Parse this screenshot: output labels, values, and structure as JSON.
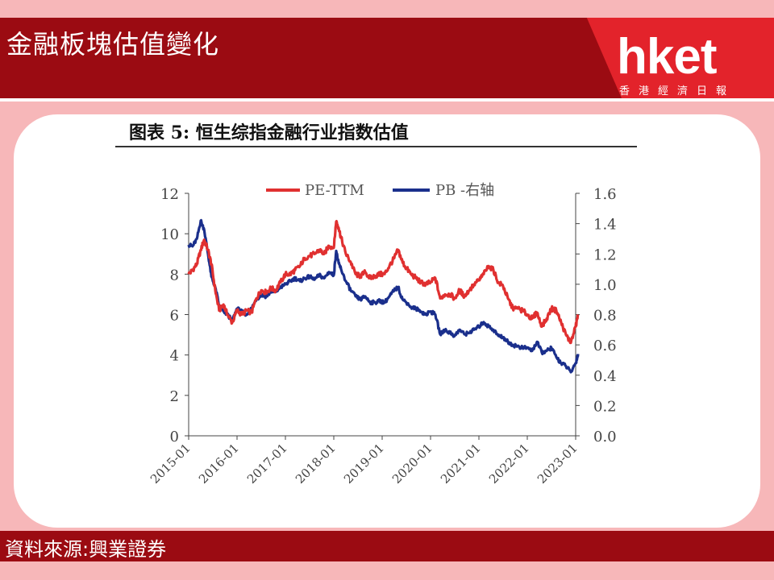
{
  "header": {
    "title": "金融板塊估值變化",
    "logo_text": "hket",
    "logo_sub": "香港經濟日報"
  },
  "footer": {
    "source": "資料來源:興業證券"
  },
  "colors": {
    "header_bg": "#9b0b12",
    "logo_bg": "#e3232b",
    "page_bg": "#f7b7b9",
    "pe_color": "#e03030",
    "pb_color": "#1a2f8c"
  },
  "chart_data": {
    "type": "line",
    "title": "图表 5: 恒生综指金融行业指数估值",
    "x_ticks": [
      "2015-01",
      "2016-01",
      "2017-01",
      "2018-01",
      "2019-01",
      "2020-01",
      "2021-01",
      "2022-01",
      "2023-01"
    ],
    "y_left": {
      "ticks": [
        "0",
        "2",
        "4",
        "6",
        "8",
        "10",
        "12"
      ],
      "lim": [
        0,
        12
      ]
    },
    "y_right": {
      "ticks": [
        "0.0",
        "0.2",
        "0.4",
        "0.6",
        "0.8",
        "1.0",
        "1.2",
        "1.4",
        "1.6"
      ],
      "lim": [
        0,
        1.6
      ]
    },
    "legend_position": "top",
    "series": [
      {
        "name": "PE-TTM",
        "axis": "left",
        "color": "#e03030",
        "x": [
          2015.0,
          2015.08,
          2015.17,
          2015.25,
          2015.32,
          2015.4,
          2015.47,
          2015.55,
          2015.63,
          2015.72,
          2015.8,
          2015.9,
          2016.0,
          2016.1,
          2016.2,
          2016.3,
          2016.4,
          2016.5,
          2016.6,
          2016.7,
          2016.8,
          2016.9,
          2017.0,
          2017.1,
          2017.2,
          2017.3,
          2017.4,
          2017.5,
          2017.6,
          2017.7,
          2017.8,
          2017.9,
          2018.0,
          2018.05,
          2018.1,
          2018.15,
          2018.25,
          2018.35,
          2018.45,
          2018.55,
          2018.65,
          2018.75,
          2018.85,
          2018.95,
          2019.05,
          2019.15,
          2019.25,
          2019.33,
          2019.42,
          2019.5,
          2019.6,
          2019.7,
          2019.8,
          2019.9,
          2020.0,
          2020.1,
          2020.2,
          2020.3,
          2020.4,
          2020.5,
          2020.6,
          2020.7,
          2020.8,
          2020.9,
          2021.0,
          2021.1,
          2021.2,
          2021.3,
          2021.4,
          2021.5,
          2021.6,
          2021.7,
          2021.8,
          2021.9,
          2022.0,
          2022.1,
          2022.2,
          2022.3,
          2022.4,
          2022.5,
          2022.6,
          2022.7,
          2022.8,
          2022.9,
          2023.0,
          2023.05
        ],
        "y": [
          8.0,
          8.2,
          8.5,
          9.2,
          9.7,
          9.2,
          8.5,
          7.2,
          6.2,
          6.5,
          6.0,
          5.6,
          6.2,
          6.0,
          6.2,
          6.1,
          6.8,
          7.2,
          7.1,
          7.3,
          7.2,
          7.6,
          8.0,
          8.0,
          8.2,
          8.4,
          8.8,
          8.9,
          9.0,
          9.2,
          9.0,
          9.4,
          9.3,
          10.6,
          10.3,
          9.8,
          9.0,
          8.6,
          8.0,
          7.9,
          8.1,
          7.8,
          7.9,
          8.0,
          8.0,
          8.4,
          8.8,
          9.2,
          8.6,
          8.3,
          8.0,
          7.8,
          7.6,
          7.5,
          7.6,
          7.8,
          6.8,
          7.0,
          7.0,
          6.8,
          7.2,
          6.9,
          7.2,
          7.5,
          7.7,
          8.0,
          8.4,
          8.2,
          7.6,
          7.4,
          6.8,
          6.3,
          6.3,
          6.2,
          6.0,
          5.8,
          6.1,
          5.4,
          5.8,
          6.3,
          6.2,
          5.6,
          5.0,
          4.6,
          5.4,
          6.0
        ]
      },
      {
        "name": "PB -右轴",
        "axis": "right",
        "color": "#1a2f8c",
        "x": [
          2015.0,
          2015.08,
          2015.17,
          2015.25,
          2015.32,
          2015.4,
          2015.47,
          2015.55,
          2015.63,
          2015.72,
          2015.8,
          2015.9,
          2016.0,
          2016.1,
          2016.2,
          2016.3,
          2016.4,
          2016.5,
          2016.6,
          2016.7,
          2016.8,
          2016.9,
          2017.0,
          2017.1,
          2017.2,
          2017.3,
          2017.4,
          2017.5,
          2017.6,
          2017.7,
          2017.8,
          2017.9,
          2018.0,
          2018.05,
          2018.1,
          2018.15,
          2018.25,
          2018.35,
          2018.45,
          2018.55,
          2018.65,
          2018.75,
          2018.85,
          2018.95,
          2019.05,
          2019.15,
          2019.25,
          2019.33,
          2019.42,
          2019.5,
          2019.6,
          2019.7,
          2019.8,
          2019.9,
          2020.0,
          2020.1,
          2020.2,
          2020.3,
          2020.4,
          2020.5,
          2020.6,
          2020.7,
          2020.8,
          2020.9,
          2021.0,
          2021.1,
          2021.2,
          2021.3,
          2021.4,
          2021.5,
          2021.6,
          2021.7,
          2021.8,
          2021.9,
          2022.0,
          2022.1,
          2022.2,
          2022.3,
          2022.4,
          2022.5,
          2022.6,
          2022.7,
          2022.8,
          2022.9,
          2023.0,
          2023.05
        ],
        "y": [
          1.26,
          1.25,
          1.3,
          1.42,
          1.36,
          1.2,
          1.05,
          0.98,
          0.86,
          0.82,
          0.8,
          0.76,
          0.84,
          0.82,
          0.8,
          0.84,
          0.9,
          0.93,
          0.92,
          0.95,
          0.95,
          0.98,
          1.0,
          1.02,
          1.04,
          1.02,
          1.04,
          1.05,
          1.03,
          1.06,
          1.04,
          1.08,
          1.06,
          1.22,
          1.14,
          1.1,
          1.02,
          0.96,
          0.92,
          0.9,
          0.92,
          0.88,
          0.88,
          0.89,
          0.88,
          0.92,
          0.96,
          0.98,
          0.9,
          0.88,
          0.85,
          0.84,
          0.82,
          0.8,
          0.82,
          0.8,
          0.67,
          0.7,
          0.68,
          0.66,
          0.7,
          0.67,
          0.68,
          0.7,
          0.72,
          0.75,
          0.72,
          0.7,
          0.66,
          0.65,
          0.62,
          0.6,
          0.59,
          0.58,
          0.58,
          0.56,
          0.62,
          0.55,
          0.56,
          0.58,
          0.52,
          0.48,
          0.46,
          0.42,
          0.48,
          0.54
        ]
      }
    ]
  }
}
